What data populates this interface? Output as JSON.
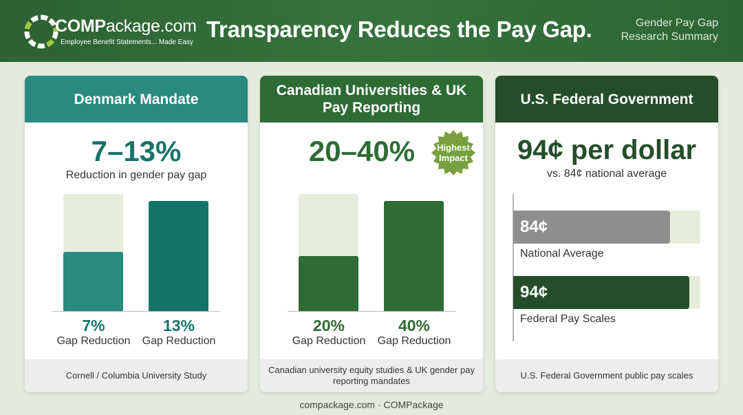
{
  "header": {
    "logo": {
      "name_bold": "COMP",
      "name_rest": "ackage.com",
      "tagline": "Employee Benefit Statements... Made Easy"
    },
    "title": "Transparency Reduces the Pay Gap.",
    "right_line1": "Gender Pay Gap",
    "right_line2": "Research Summary"
  },
  "colors": {
    "teal": "#2a8a80",
    "teal_dark": "#16736a",
    "green": "#2e6b35",
    "dark_green": "#254d29",
    "gray": "#8e8e8e",
    "track": "#e7eddc"
  },
  "cards": [
    {
      "title": "Denmark Mandate",
      "headline": "7–13%",
      "subtitle": "Reduction in gender pay gap",
      "source": "Cornell / Columbia University Study"
    },
    {
      "title": "Canadian Universities & UK Pay Reporting",
      "headline": "20–40%",
      "badge": "Highest Impact",
      "source": "Canadian university equity studies & UK gender pay reporting mandates"
    },
    {
      "title": "U.S. Federal Government",
      "headline": "94¢ per dollar",
      "subtitle": "vs. 84¢ national average",
      "source": "U.S. Federal Government public pay scales"
    }
  ],
  "chart_data": [
    {
      "type": "bar",
      "categories": [
        "Gap Reduction",
        "Gap Reduction"
      ],
      "values": [
        7,
        13
      ],
      "value_labels": [
        "7%",
        "13%"
      ],
      "ylim": [
        0,
        13
      ],
      "reference": 13
    },
    {
      "type": "bar",
      "categories": [
        "Gap Reduction",
        "Gap Reduction"
      ],
      "values": [
        20,
        40
      ],
      "value_labels": [
        "20%",
        "40%"
      ],
      "ylim": [
        0,
        40
      ],
      "reference": 40
    },
    {
      "type": "bar",
      "orientation": "horizontal",
      "categories": [
        "National Average",
        "Federal Pay Scales"
      ],
      "values": [
        84,
        94
      ],
      "value_labels": [
        "84¢",
        "94¢"
      ],
      "xlim": [
        0,
        100
      ]
    }
  ],
  "footer": "compackage.com · COMPackage"
}
